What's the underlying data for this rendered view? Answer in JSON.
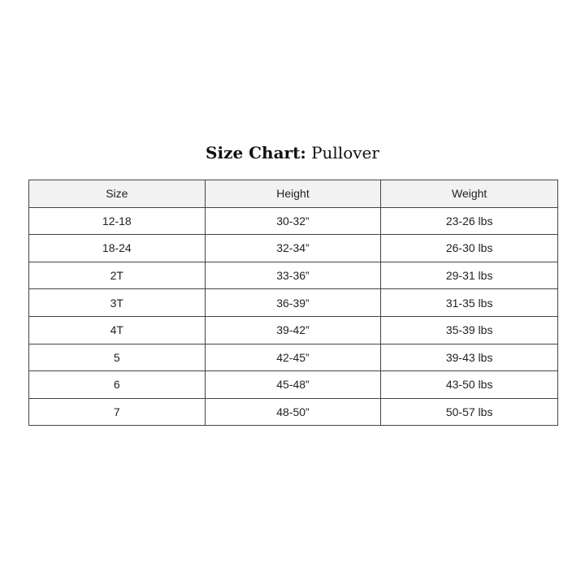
{
  "title": {
    "bold": "Size Chart:",
    "rest": "Pullover"
  },
  "table": {
    "headers": [
      "Size",
      "Height",
      "Weight"
    ],
    "rows": [
      [
        "12-18",
        "30-32”",
        "23-26 lbs"
      ],
      [
        "18-24",
        "32-34”",
        "26-30 lbs"
      ],
      [
        "2T",
        "33-36”",
        "29-31 lbs"
      ],
      [
        "3T",
        "36-39”",
        "31-35 lbs"
      ],
      [
        "4T",
        "39-42”",
        "35-39 lbs"
      ],
      [
        "5",
        "42-45”",
        "39-43 lbs"
      ],
      [
        "6",
        "45-48”",
        "43-50 lbs"
      ],
      [
        "7",
        "48-50”",
        "50-57 lbs"
      ]
    ]
  }
}
